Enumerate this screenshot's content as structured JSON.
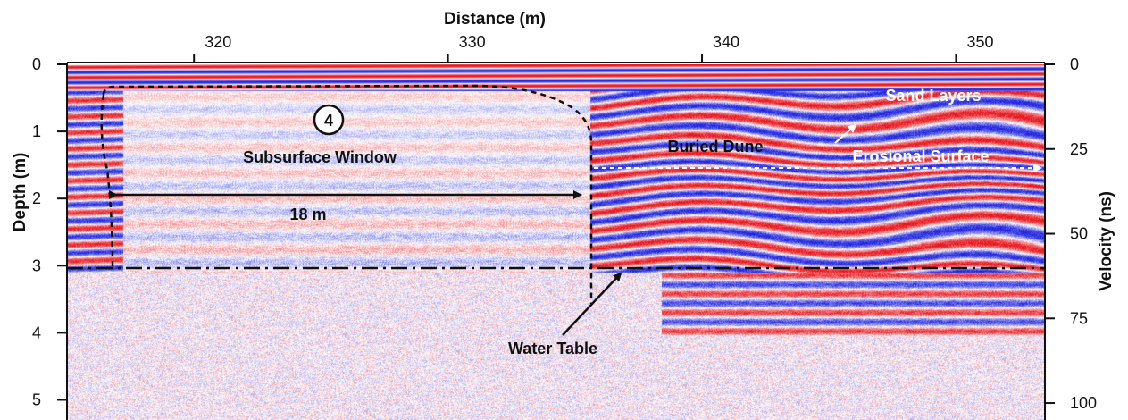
{
  "chart_data": {
    "type": "heatmap",
    "title": "Distance (m)",
    "xlabel": "Distance (m)",
    "ylabel": "Depth (m)",
    "y2label": "Velocity (ns)",
    "xlim": [
      315,
      353.5
    ],
    "ylim": [
      0,
      5.3
    ],
    "y2lim": [
      0,
      105
    ],
    "x_ticks": [
      320,
      330,
      340,
      350
    ],
    "y_ticks": [
      0,
      1,
      2,
      3,
      4,
      5
    ],
    "y2_ticks": [
      0,
      25,
      50,
      75,
      100
    ],
    "colormap": {
      "positive": "#e8141c",
      "negative": "#1f24e0",
      "zero": "#ffffff"
    },
    "annotations": [
      {
        "text": "4",
        "x": 325.5,
        "y": 0.9
      },
      {
        "text": "Subsurface Window",
        "x": 325.5,
        "y": 1.45
      },
      {
        "text": "18 m",
        "x": 325.5,
        "y": 2.4
      },
      {
        "text": "Buried Dune",
        "x": 341.0,
        "y": 1.3
      },
      {
        "text": "Sand Layers",
        "x": 348.0,
        "y": 0.55
      },
      {
        "text": "Erosional Surface",
        "x": 346.5,
        "y": 1.45
      },
      {
        "text": "Water Table",
        "x": 337.0,
        "y": 4.3
      }
    ],
    "water_table_depth": 3.1,
    "window_span_m": [
      317.2,
      335.6
    ]
  }
}
